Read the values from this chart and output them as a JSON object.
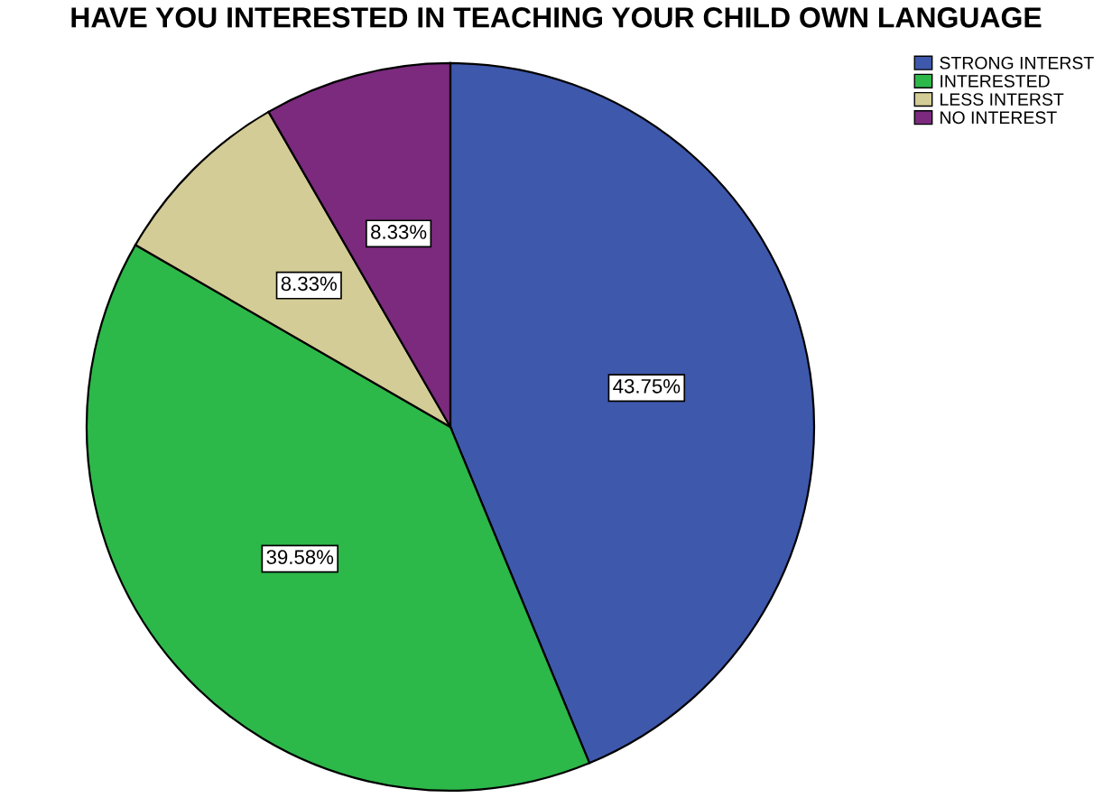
{
  "chart_data": {
    "type": "pie",
    "title": "HAVE YOU INTERESTED IN TEACHING YOUR CHILD OWN LANGUAGE",
    "categories": [
      "STRONG INTERST",
      "INTERESTED",
      "LESS INTERST",
      "NO INTEREST"
    ],
    "values": [
      43.75,
      39.58,
      8.33,
      8.33
    ],
    "value_labels": [
      "43.75%",
      "39.58%",
      "8.33%",
      "8.33%"
    ],
    "colors": [
      "#3e58ac",
      "#2db84a",
      "#d4cc96",
      "#7b2a7e"
    ],
    "legend": "top right"
  }
}
